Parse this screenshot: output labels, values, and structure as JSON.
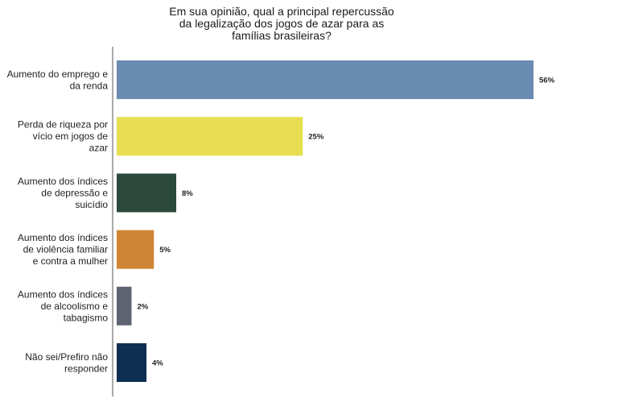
{
  "chart_data": {
    "type": "bar",
    "orientation": "horizontal",
    "title": "Em sua opinião, qual a principal repercussão\nda legalização dos jogos de azar para as\nfamílias brasileiras?",
    "categories": [
      [
        "Aumento do emprego e",
        "da renda"
      ],
      [
        "Perda de riqueza por",
        "vício em jogos de",
        "azar"
      ],
      [
        "Aumento dos índices",
        "de depressão e",
        "suicídio"
      ],
      [
        "Aumento dos índices",
        "de violência familiar",
        "e contra a mulher"
      ],
      [
        "Aumento dos índices",
        "de alcoolismo e",
        "tabagismo"
      ],
      [
        "Não sei/Prefiro não",
        "responder"
      ]
    ],
    "values": [
      56,
      25,
      8,
      5,
      2,
      4
    ],
    "value_labels": [
      "56%",
      "25%",
      "8%",
      "5%",
      "2%",
      "4%"
    ],
    "colors": [
      "#6a8bb2",
      "#e8de52",
      "#2c4a3c",
      "#cf8533",
      "#5f6472",
      "#0f2f52"
    ],
    "xlim": [
      0,
      60
    ],
    "grid": false,
    "legend": "none"
  }
}
